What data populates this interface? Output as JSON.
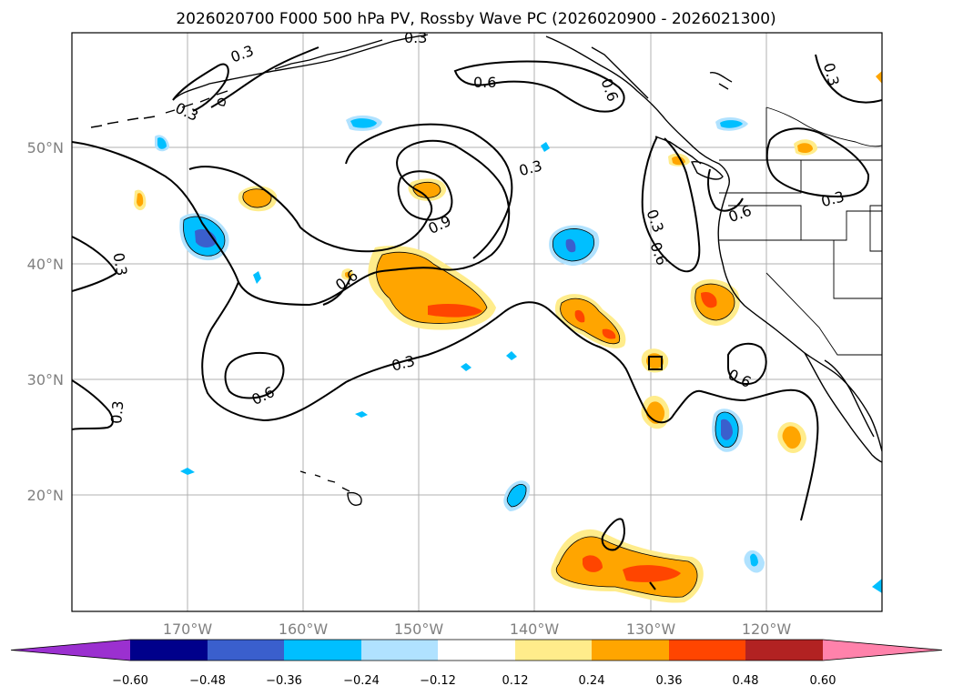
{
  "title": "2026020700 F000 500 hPa PV, Rossby Wave PC (2026020900 - 2026021300)",
  "map": {
    "lon_range": [
      -180,
      -110
    ],
    "lat_range": [
      10,
      60
    ],
    "lat_labels": [
      "50°N",
      "40°N",
      "30°N",
      "20°N"
    ],
    "lon_labels": [
      "170°W",
      "160°W",
      "150°W",
      "140°W",
      "130°W",
      "120°W"
    ],
    "grid": true
  },
  "contour_labels": [
    "0.3",
    "0.3",
    "0.6",
    "0.6",
    "0.3",
    "0.3",
    "0.3",
    "0.6",
    "0.3",
    "0.9",
    "0.3",
    "0.6",
    "0.6",
    "0.3",
    "0.6",
    "0.3",
    "0.6",
    "0.3"
  ],
  "colorbar": {
    "ticks": [
      "−0.60",
      "−0.48",
      "−0.36",
      "−0.24",
      "−0.12",
      "0.12",
      "0.24",
      "0.36",
      "0.48",
      "0.60"
    ],
    "colors": [
      "#9b30d0",
      "#00008b",
      "#3a5fcd",
      "#00bfff",
      "#b0e2ff",
      "#ffffff",
      "#ffec8b",
      "#ffa500",
      "#ff4500",
      "#b22222",
      "#ff82ab"
    ]
  }
}
